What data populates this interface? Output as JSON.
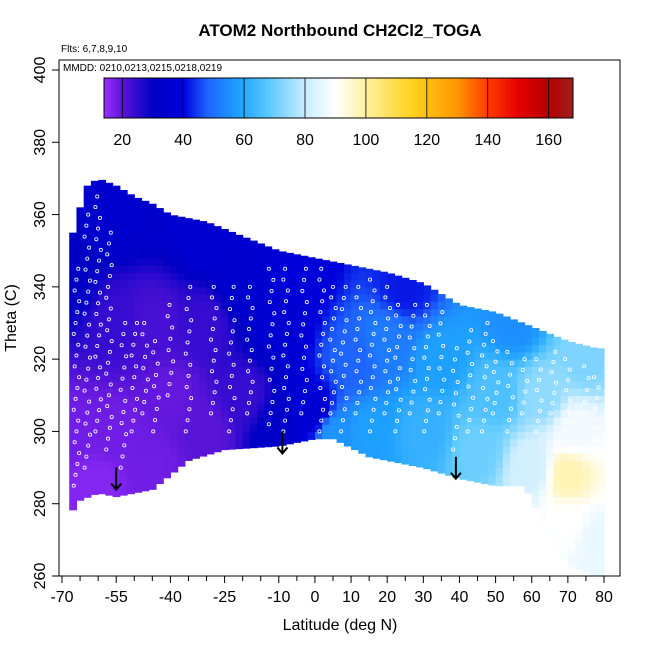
{
  "chart_data": {
    "type": "heatmap",
    "title": "ATOM2 Northbound CH2Cl2_TOGA",
    "xlabel": "Latitude (deg N)",
    "ylabel": "Theta (C)",
    "xlim": [
      -70,
      80
    ],
    "ylim": [
      260,
      400
    ],
    "x_ticks": [
      -70,
      -55,
      -40,
      -25,
      -10,
      0,
      10,
      20,
      30,
      40,
      50,
      60,
      70,
      80
    ],
    "x_minor_ticks": [
      -65,
      -60,
      -50,
      -45,
      -35,
      -30,
      -20,
      -15,
      -5,
      5,
      15,
      25,
      35,
      45,
      55,
      65,
      75
    ],
    "y_ticks": [
      260,
      280,
      300,
      320,
      340,
      360,
      380,
      400
    ],
    "flights_text": "Flts: 6,7,8,9,10",
    "mmdd_text": "MMDD: 0210,0213,0215,0218,0219",
    "colorbar": {
      "min": 14,
      "max": 168,
      "ticks": [
        20,
        40,
        60,
        80,
        100,
        120,
        140,
        160
      ],
      "gridlines": [
        20,
        40,
        60,
        80,
        100,
        120,
        140,
        160
      ],
      "stops": [
        {
          "v": 14,
          "c": "#9b30ff"
        },
        {
          "v": 20,
          "c": "#5a14d8"
        },
        {
          "v": 30,
          "c": "#0000c4"
        },
        {
          "v": 40,
          "c": "#0000dd"
        },
        {
          "v": 48,
          "c": "#1e64ff"
        },
        {
          "v": 58,
          "c": "#1ea0ff"
        },
        {
          "v": 68,
          "c": "#5ac8ff"
        },
        {
          "v": 80,
          "c": "#c8ecff"
        },
        {
          "v": 90,
          "c": "#ffffff"
        },
        {
          "v": 100,
          "c": "#fff0a0"
        },
        {
          "v": 115,
          "c": "#ffd21e"
        },
        {
          "v": 130,
          "c": "#ff9600"
        },
        {
          "v": 140,
          "c": "#ff3c00"
        },
        {
          "v": 150,
          "c": "#e60000"
        },
        {
          "v": 160,
          "c": "#b40000"
        },
        {
          "v": 168,
          "c": "#a01e1e"
        }
      ]
    },
    "coverage": {
      "upper": [
        [
          -68,
          347
        ],
        [
          -67,
          355
        ],
        [
          -65,
          362
        ],
        [
          -63,
          368
        ],
        [
          -60,
          370
        ],
        [
          -55,
          368
        ],
        [
          -50,
          365
        ],
        [
          -45,
          363
        ],
        [
          -40,
          360
        ],
        [
          -30,
          358
        ],
        [
          -20,
          354
        ],
        [
          -10,
          350
        ],
        [
          0,
          348
        ],
        [
          10,
          346
        ],
        [
          20,
          344
        ],
        [
          30,
          341
        ],
        [
          40,
          335
        ],
        [
          50,
          333
        ],
        [
          60,
          329
        ],
        [
          70,
          325
        ],
        [
          78,
          323
        ]
      ],
      "lower": [
        [
          -68,
          277
        ],
        [
          -65,
          281
        ],
        [
          -60,
          283
        ],
        [
          -55,
          282
        ],
        [
          -50,
          283
        ],
        [
          -45,
          284
        ],
        [
          -35,
          292
        ],
        [
          -25,
          295
        ],
        [
          -10,
          296
        ],
        [
          0,
          298
        ],
        [
          5,
          298
        ],
        [
          15,
          293
        ],
        [
          30,
          290
        ],
        [
          40,
          287
        ],
        [
          50,
          285
        ],
        [
          58,
          285
        ],
        [
          65,
          271
        ],
        [
          70,
          263
        ],
        [
          78,
          260
        ]
      ]
    },
    "field_anchors": [
      {
        "x": -68,
        "y": 300,
        "v": 18
      },
      {
        "x": -68,
        "y": 340,
        "v": 30
      },
      {
        "x": -60,
        "y": 285,
        "v": 16
      },
      {
        "x": -55,
        "y": 300,
        "v": 18
      },
      {
        "x": -55,
        "y": 330,
        "v": 24
      },
      {
        "x": -55,
        "y": 360,
        "v": 34
      },
      {
        "x": -45,
        "y": 290,
        "v": 18
      },
      {
        "x": -45,
        "y": 330,
        "v": 22
      },
      {
        "x": -40,
        "y": 310,
        "v": 19
      },
      {
        "x": -30,
        "y": 300,
        "v": 20
      },
      {
        "x": -30,
        "y": 330,
        "v": 24
      },
      {
        "x": -30,
        "y": 355,
        "v": 36
      },
      {
        "x": -20,
        "y": 310,
        "v": 24
      },
      {
        "x": -20,
        "y": 340,
        "v": 34
      },
      {
        "x": -10,
        "y": 300,
        "v": 32
      },
      {
        "x": -10,
        "y": 330,
        "v": 36
      },
      {
        "x": -5,
        "y": 345,
        "v": 38
      },
      {
        "x": 0,
        "y": 305,
        "v": 36
      },
      {
        "x": 5,
        "y": 300,
        "v": 56
      },
      {
        "x": 10,
        "y": 320,
        "v": 48
      },
      {
        "x": 15,
        "y": 300,
        "v": 58
      },
      {
        "x": 20,
        "y": 325,
        "v": 52
      },
      {
        "x": 25,
        "y": 340,
        "v": 42
      },
      {
        "x": 30,
        "y": 300,
        "v": 62
      },
      {
        "x": 35,
        "y": 320,
        "v": 58
      },
      {
        "x": 45,
        "y": 295,
        "v": 70
      },
      {
        "x": 50,
        "y": 310,
        "v": 66
      },
      {
        "x": 55,
        "y": 330,
        "v": 55
      },
      {
        "x": 60,
        "y": 290,
        "v": 82
      },
      {
        "x": 63,
        "y": 310,
        "v": 74
      },
      {
        "x": 70,
        "y": 288,
        "v": 98
      },
      {
        "x": 70,
        "y": 275,
        "v": 90
      },
      {
        "x": 72,
        "y": 300,
        "v": 88
      },
      {
        "x": 75,
        "y": 320,
        "v": 72
      },
      {
        "x": 78,
        "y": 270,
        "v": 86
      }
    ],
    "arrows": [
      [
        -55,
        290
      ],
      [
        -9,
        300
      ],
      [
        39,
        293
      ]
    ],
    "profiles": [
      [
        -66,
        285,
        345
      ],
      [
        -63,
        290,
        360
      ],
      [
        -60,
        300,
        365
      ],
      [
        -57,
        295,
        355
      ],
      [
        -53,
        290,
        330
      ],
      [
        -50,
        300,
        330
      ],
      [
        -47,
        305,
        330
      ],
      [
        -44,
        300,
        325
      ],
      [
        -40,
        310,
        335
      ],
      [
        -35,
        300,
        340
      ],
      [
        -28,
        305,
        340
      ],
      [
        -23,
        300,
        340
      ],
      [
        -18,
        305,
        340
      ],
      [
        -12,
        302,
        345
      ],
      [
        -8,
        300,
        345
      ],
      [
        -3,
        305,
        345
      ],
      [
        2,
        300,
        345
      ],
      [
        5,
        305,
        340
      ],
      [
        8,
        300,
        340
      ],
      [
        12,
        305,
        340
      ],
      [
        16,
        300,
        342
      ],
      [
        20,
        305,
        340
      ],
      [
        23,
        300,
        335
      ],
      [
        27,
        305,
        335
      ],
      [
        31,
        300,
        335
      ],
      [
        35,
        305,
        333
      ],
      [
        39,
        295,
        323
      ],
      [
        43,
        300,
        328
      ],
      [
        47,
        300,
        330
      ],
      [
        50,
        305,
        325
      ],
      [
        54,
        300,
        322
      ],
      [
        58,
        305,
        320
      ],
      [
        62,
        300,
        320
      ],
      [
        66,
        305,
        322
      ],
      [
        70,
        300,
        320
      ],
      [
        75,
        305,
        318
      ],
      [
        78,
        295,
        315
      ]
    ]
  }
}
